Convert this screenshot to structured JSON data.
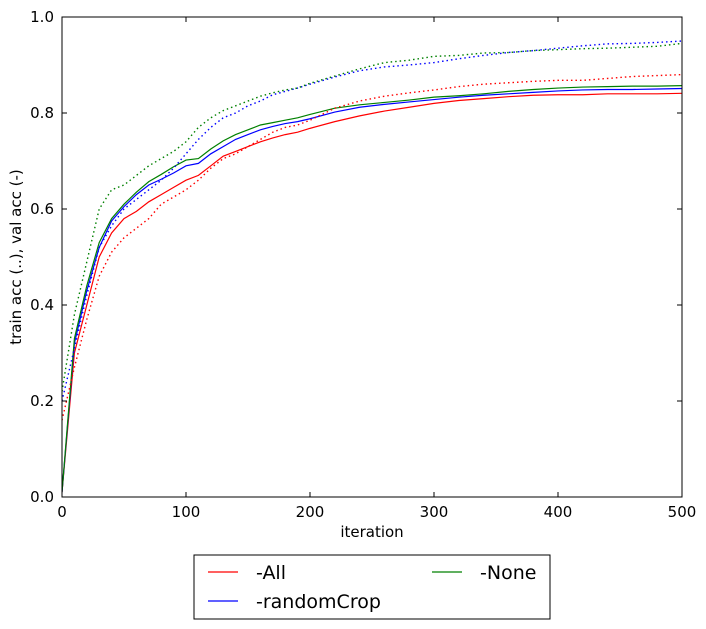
{
  "chart_data": {
    "type": "line",
    "title": "",
    "xlabel": "iteration",
    "ylabel": "train acc (..), val acc (-)",
    "xlim": [
      0,
      500
    ],
    "ylim": [
      0.0,
      1.0
    ],
    "xticks": [
      0,
      100,
      200,
      300,
      400,
      500
    ],
    "yticks": [
      0.0,
      0.2,
      0.4,
      0.6,
      0.8,
      1.0
    ],
    "xtick_labels": [
      "0",
      "100",
      "200",
      "300",
      "400",
      "500"
    ],
    "ytick_labels": [
      "0.0",
      "0.2",
      "0.4",
      "0.6",
      "0.8",
      "1.0"
    ],
    "grid": false,
    "legend_placement": "below",
    "x": [
      0,
      10,
      20,
      30,
      40,
      50,
      60,
      70,
      80,
      90,
      100,
      110,
      120,
      130,
      140,
      150,
      160,
      170,
      180,
      190,
      200,
      220,
      240,
      260,
      280,
      300,
      320,
      340,
      360,
      380,
      400,
      420,
      440,
      460,
      480,
      500
    ],
    "series": [
      {
        "name": "-All",
        "color": "#ff0000",
        "style": "solid",
        "values": [
          0.01,
          0.3,
          0.4,
          0.5,
          0.55,
          0.58,
          0.595,
          0.615,
          0.63,
          0.645,
          0.66,
          0.67,
          0.69,
          0.71,
          0.72,
          0.73,
          0.74,
          0.748,
          0.755,
          0.76,
          0.768,
          0.782,
          0.794,
          0.804,
          0.812,
          0.82,
          0.826,
          0.83,
          0.834,
          0.837,
          0.838,
          0.838,
          0.84,
          0.84,
          0.84,
          0.841
        ]
      },
      {
        "name": "-randomCrop",
        "color": "#0000ff",
        "style": "solid",
        "values": [
          0.01,
          0.32,
          0.43,
          0.52,
          0.575,
          0.605,
          0.63,
          0.65,
          0.662,
          0.675,
          0.69,
          0.695,
          0.715,
          0.73,
          0.745,
          0.755,
          0.765,
          0.772,
          0.778,
          0.782,
          0.788,
          0.802,
          0.812,
          0.818,
          0.823,
          0.828,
          0.833,
          0.837,
          0.84,
          0.843,
          0.846,
          0.848,
          0.849,
          0.849,
          0.85,
          0.851
        ]
      },
      {
        "name": "-None",
        "color": "#008000",
        "style": "solid",
        "values": [
          0.01,
          0.33,
          0.44,
          0.53,
          0.58,
          0.61,
          0.635,
          0.657,
          0.672,
          0.688,
          0.702,
          0.705,
          0.725,
          0.742,
          0.755,
          0.765,
          0.775,
          0.78,
          0.785,
          0.79,
          0.797,
          0.81,
          0.817,
          0.822,
          0.827,
          0.833,
          0.836,
          0.84,
          0.845,
          0.849,
          0.852,
          0.854,
          0.855,
          0.856,
          0.856,
          0.857
        ]
      },
      {
        "name": "",
        "color": "#ff0000",
        "style": "dotted",
        "values": [
          0.16,
          0.27,
          0.37,
          0.46,
          0.51,
          0.54,
          0.56,
          0.58,
          0.61,
          0.625,
          0.64,
          0.66,
          0.685,
          0.705,
          0.715,
          0.73,
          0.745,
          0.76,
          0.77,
          0.775,
          0.785,
          0.81,
          0.825,
          0.835,
          0.842,
          0.848,
          0.855,
          0.86,
          0.863,
          0.866,
          0.868,
          0.868,
          0.872,
          0.876,
          0.878,
          0.88
        ]
      },
      {
        "name": "",
        "color": "#0000ff",
        "style": "dotted",
        "values": [
          0.2,
          0.31,
          0.42,
          0.52,
          0.565,
          0.6,
          0.62,
          0.64,
          0.66,
          0.685,
          0.715,
          0.745,
          0.77,
          0.79,
          0.8,
          0.815,
          0.825,
          0.838,
          0.845,
          0.852,
          0.86,
          0.875,
          0.888,
          0.896,
          0.9,
          0.905,
          0.913,
          0.92,
          0.926,
          0.93,
          0.935,
          0.94,
          0.944,
          0.945,
          0.947,
          0.95
        ]
      },
      {
        "name": "",
        "color": "#008000",
        "style": "dotted",
        "values": [
          0.22,
          0.38,
          0.49,
          0.6,
          0.64,
          0.65,
          0.67,
          0.69,
          0.705,
          0.72,
          0.74,
          0.77,
          0.79,
          0.805,
          0.815,
          0.825,
          0.835,
          0.842,
          0.848,
          0.852,
          0.862,
          0.877,
          0.892,
          0.905,
          0.91,
          0.918,
          0.92,
          0.925,
          0.926,
          0.93,
          0.932,
          0.934,
          0.935,
          0.937,
          0.939,
          0.945
        ]
      }
    ],
    "legend": [
      {
        "name": "-All",
        "color": "#ff0000"
      },
      {
        "name": "-randomCrop",
        "color": "#0000ff"
      },
      {
        "name": "-None",
        "color": "#008000"
      }
    ]
  }
}
